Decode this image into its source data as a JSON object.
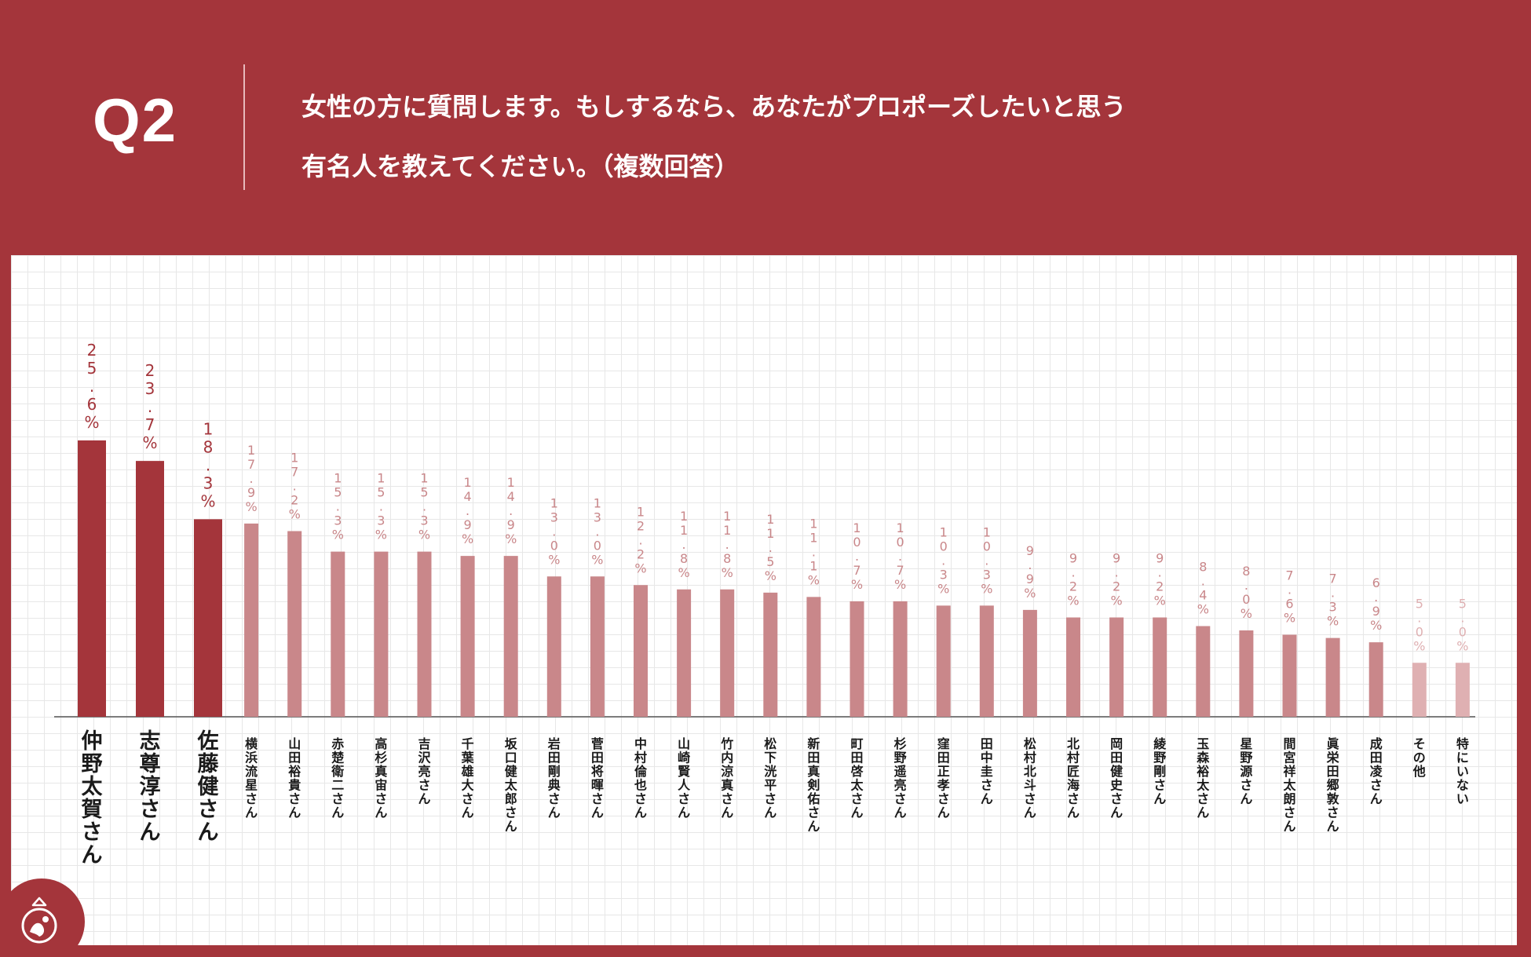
{
  "header": {
    "q_label": "Q2",
    "question_line1": "女性の方に質問します。もしするなら、あなたがプロポーズしたいと思う",
    "question_line2": "有名人を教えてください。（複数回答）"
  },
  "colors": {
    "background": "#a4353b",
    "bar_top3": "#a4353b",
    "bar_other": "#c9878a",
    "bar_misc": "#dfb0b2"
  },
  "chart_data": {
    "type": "bar",
    "title": "",
    "xlabel": "",
    "ylabel": "",
    "ylim": [
      0,
      30
    ],
    "grid": true,
    "categories": [
      "仲野太賀さん",
      "志尊淳さん",
      "佐藤健さん",
      "横浜流星さん",
      "山田裕貴さん",
      "赤楚衛二さん",
      "高杉真宙さん",
      "吉沢亮さん",
      "千葉雄大さん",
      "坂口健太郎さん",
      "岩田剛典さん",
      "菅田将暉さん",
      "中村倫也さん",
      "山崎賢人さん",
      "竹内涼真さん",
      "松下洸平さん",
      "新田真剣佑さん",
      "町田啓太さん",
      "杉野遥亮さん",
      "窪田正孝さん",
      "田中圭さん",
      "松村北斗さん",
      "北村匠海さん",
      "岡田健史さん",
      "綾野剛さん",
      "玉森裕太さん",
      "星野源さん",
      "間宮祥太朗さん",
      "眞栄田郷敦さん",
      "成田凌さん",
      "その他",
      "特にいない"
    ],
    "values": [
      25.6,
      23.7,
      18.3,
      17.9,
      17.2,
      15.3,
      15.3,
      15.3,
      14.9,
      14.9,
      13.0,
      13.0,
      12.2,
      11.8,
      11.8,
      11.5,
      11.1,
      10.7,
      10.7,
      10.3,
      10.3,
      9.9,
      9.2,
      9.2,
      9.2,
      8.4,
      8.0,
      7.6,
      7.3,
      6.9,
      5.0,
      5.0
    ],
    "labels": [
      "25.6%",
      "23.7%",
      "18.3%",
      "17.9%",
      "17.2%",
      "15.3%",
      "15.3%",
      "15.3%",
      "14.9%",
      "14.9%",
      "13.0%",
      "13.0%",
      "12.2%",
      "11.8%",
      "11.8%",
      "11.5%",
      "11.1%",
      "10.7%",
      "10.7%",
      "10.3%",
      "10.3%",
      "9.9%",
      "9.2%",
      "9.2%",
      "9.2%",
      "8.4%",
      "8.0%",
      "7.6%",
      "7.3%",
      "6.9%",
      "5.0%",
      "5.0%"
    ]
  }
}
